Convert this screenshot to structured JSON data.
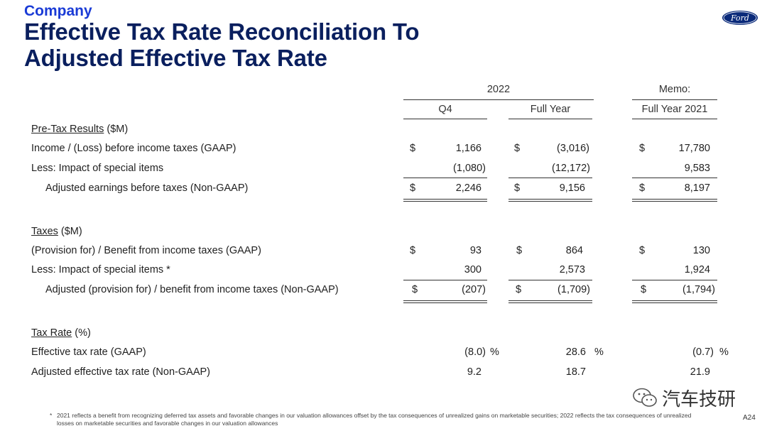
{
  "header": {
    "company": "Company",
    "title_line1": "Effective Tax Rate Reconciliation To",
    "title_line2": "Adjusted Effective Tax Rate",
    "logo_text": "Ford"
  },
  "columns": {
    "group_2022": "2022",
    "memo": "Memo:",
    "q4": "Q4",
    "full_year": "Full Year",
    "full_year_2021": "Full Year 2021"
  },
  "sections": {
    "pretax": {
      "title": "Pre-Tax Results",
      "unit": " ($M)",
      "rows": [
        {
          "label": "Income / (Loss) before income taxes (GAAP)",
          "d1": "$",
          "q4": "1,166",
          "d2": "$",
          "fy": "(3,016)",
          "d3": "$",
          "fy21": "17,780"
        },
        {
          "label": "Less:  Impact of special items",
          "d1": "",
          "q4": "(1,080)",
          "d2": "",
          "fy": "(12,172)",
          "d3": "",
          "fy21": "9,583"
        },
        {
          "label": "Adjusted earnings before taxes (Non-GAAP)",
          "d1": "$",
          "q4": "2,246",
          "d2": "$",
          "fy": "9,156",
          "d3": "$",
          "fy21": "8,197"
        }
      ]
    },
    "taxes": {
      "title": "Taxes",
      "unit": " ($M)",
      "rows": [
        {
          "label": "(Provision for) / Benefit from income taxes (GAAP)",
          "d1": "$",
          "q4": "93",
          "d2": "$",
          "fy": "864",
          "d3": "$",
          "fy21": "130"
        },
        {
          "label": "Less:  Impact of special items  *",
          "d1": "",
          "q4": "300",
          "d2": "",
          "fy": "2,573",
          "d3": "",
          "fy21": "1,924"
        },
        {
          "label": "Adjusted (provision for) / benefit from income taxes (Non-GAAP)",
          "d1": "$",
          "q4": "(207)",
          "d2": "$",
          "fy": "(1,709)",
          "d3": "$",
          "fy21": "(1,794)"
        }
      ]
    },
    "taxrate": {
      "title": "Tax Rate",
      "unit": " (%)",
      "rows": [
        {
          "label": "Effective tax rate (GAAP)",
          "q4": "(8.0)",
          "p1": "%",
          "fy": "28.6",
          "p2": "%",
          "fy21": "(0.7)",
          "p3": "%"
        },
        {
          "label": "Adjusted effective tax rate (Non-GAAP)",
          "q4": "9.2",
          "p1": "",
          "fy": "18.7",
          "p2": "",
          "fy21": "21.9",
          "p3": ""
        }
      ]
    }
  },
  "footnote": {
    "star": "*",
    "text": "2021 reflects a benefit from recognizing deferred tax assets and favorable changes in our valuation allowances offset by the tax consequences of unrealized gains on marketable securities; 2022 reflects the tax consequences of unrealized losses on marketable securities and favorable changes in our valuation allowances"
  },
  "page_number": "A24",
  "watermark": {
    "text": "汽车技研",
    "icon": "wechat-icon"
  }
}
